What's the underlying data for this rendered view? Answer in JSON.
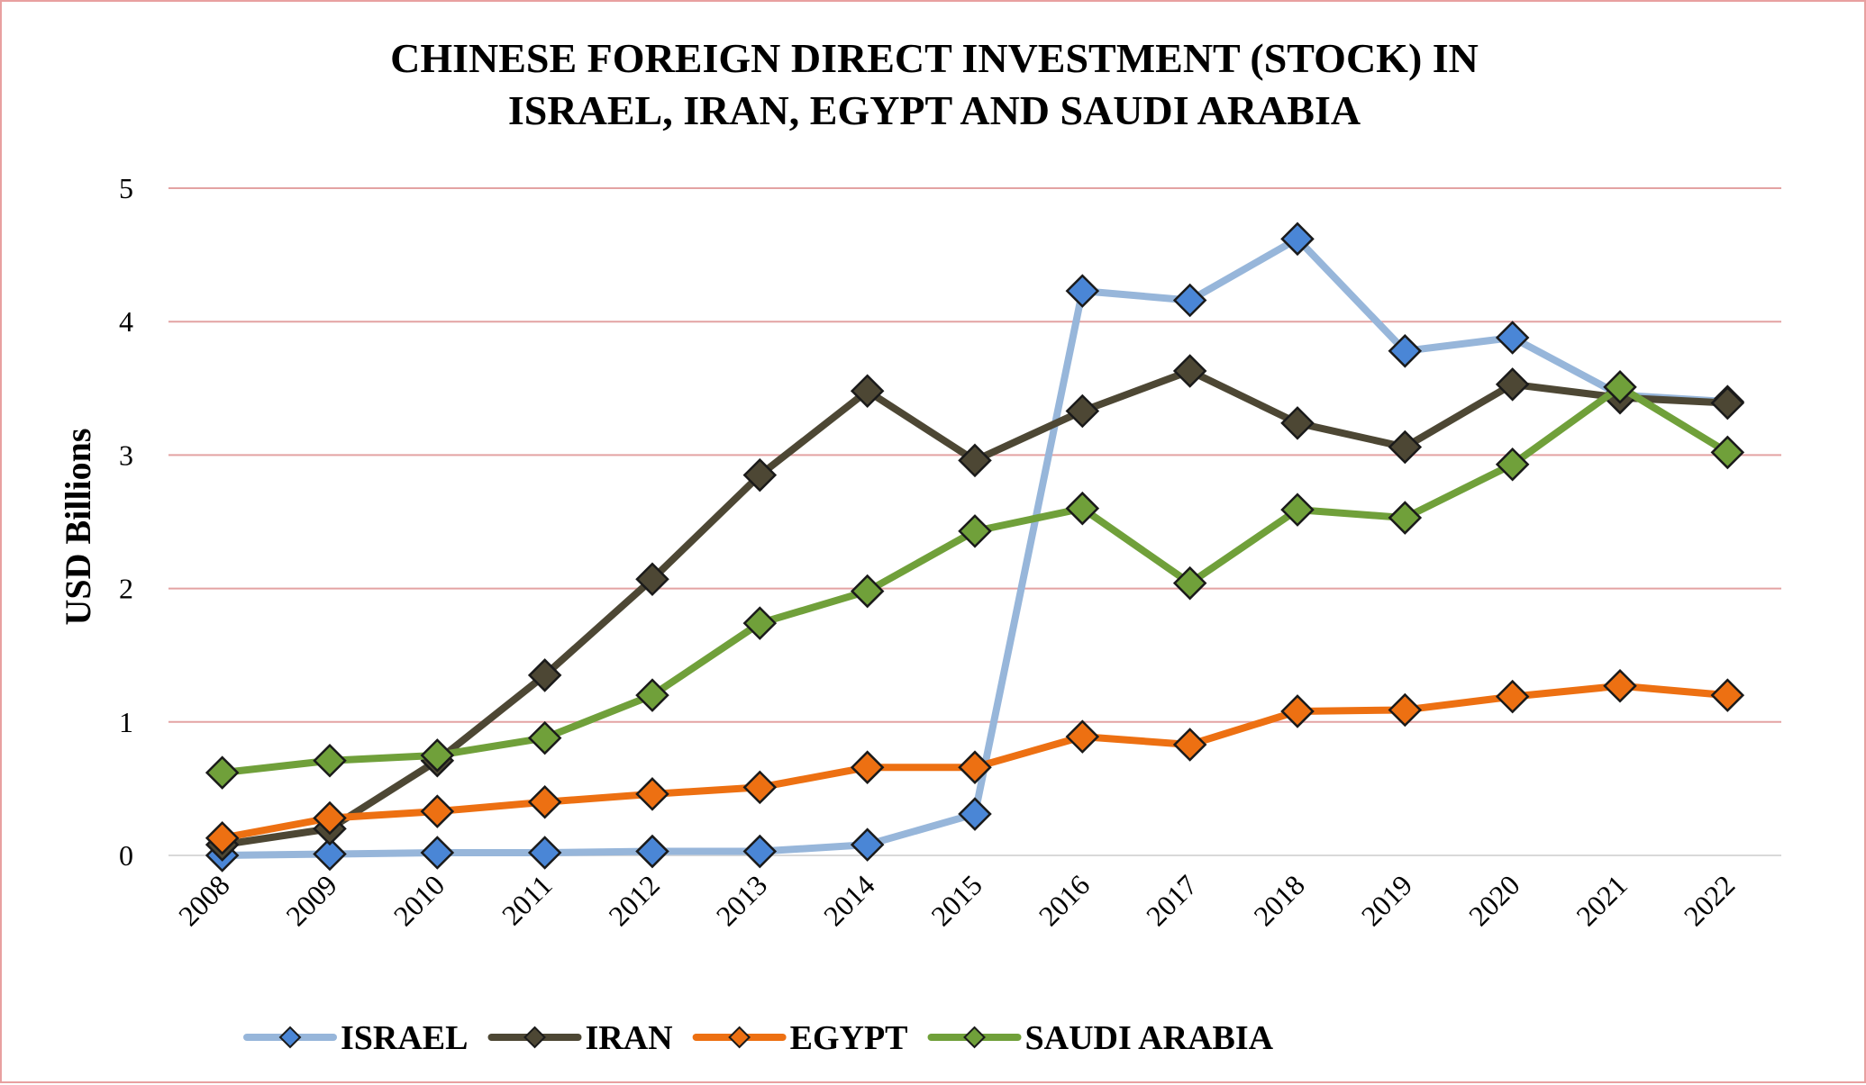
{
  "chart_data": {
    "type": "line",
    "title_lines": [
      "CHINESE FOREIGN DIRECT INVESTMENT (STOCK) IN",
      "ISRAEL, IRAN, EGYPT AND SAUDI ARABIA"
    ],
    "xlabel": "",
    "ylabel": "USD Billions",
    "ylim": [
      0,
      5
    ],
    "yticks": [
      "0",
      "1",
      "2",
      "3",
      "4",
      "5"
    ],
    "grid": true,
    "legend_position": "bottom",
    "categories": [
      "2008",
      "2009",
      "2010",
      "2011",
      "2012",
      "2013",
      "2014",
      "2015",
      "2016",
      "2017",
      "2018",
      "2019",
      "2020",
      "2021",
      "2022"
    ],
    "series": [
      {
        "name": "ISRAEL",
        "line_color": "#97b6da",
        "marker_color": "#4a86d6",
        "values": [
          0.0,
          0.01,
          0.02,
          0.02,
          0.03,
          0.03,
          0.08,
          0.31,
          4.23,
          4.16,
          4.62,
          3.78,
          3.88,
          3.45,
          3.4
        ]
      },
      {
        "name": "IRAN",
        "line_color": "#4d4734",
        "marker_color": "#4d4734",
        "values": [
          0.08,
          0.2,
          0.71,
          1.35,
          2.07,
          2.85,
          3.48,
          2.96,
          3.33,
          3.63,
          3.24,
          3.06,
          3.53,
          3.43,
          3.39
        ]
      },
      {
        "name": "EGYPT",
        "line_color": "#ed7012",
        "marker_color": "#ed7012",
        "values": [
          0.13,
          0.28,
          0.33,
          0.4,
          0.46,
          0.51,
          0.66,
          0.66,
          0.89,
          0.83,
          1.08,
          1.09,
          1.19,
          1.27,
          1.2
        ]
      },
      {
        "name": "SAUDI ARABIA",
        "line_color": "#70a03a",
        "marker_color": "#70a03a",
        "values": [
          0.62,
          0.71,
          0.75,
          0.88,
          1.2,
          1.74,
          1.98,
          2.43,
          2.6,
          2.04,
          2.59,
          2.53,
          2.93,
          3.51,
          3.02
        ]
      }
    ],
    "colors": {
      "gridline": "#e3a3a3",
      "baseline": "#d9d9d9",
      "frame": "#e8a0a0",
      "marker_edge": "#1a1a1a"
    }
  }
}
